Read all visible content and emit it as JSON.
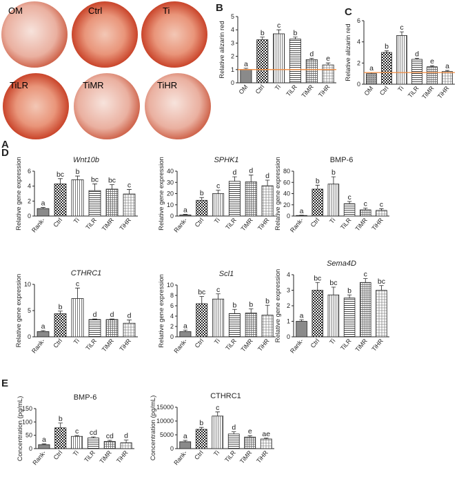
{
  "panel_labels": [
    "A",
    "B",
    "C",
    "D",
    "E"
  ],
  "photos": [
    "OM",
    "Ctrl",
    "Ti",
    "TiLR",
    "TiMR",
    "TiHR"
  ],
  "chart_data": [
    {
      "type": "bar",
      "ylabel": "Relative alizarin red",
      "categories": [
        "OM",
        "Ctrl",
        "Ti",
        "TiLR",
        "TiMR",
        "TiHR"
      ],
      "values": [
        1.0,
        3.25,
        3.7,
        3.3,
        1.75,
        1.35
      ],
      "errors": [
        0.1,
        0.2,
        0.3,
        0.15,
        0.1,
        0.15
      ],
      "annotations": [
        "a",
        "b",
        "c",
        "b",
        "d",
        "e"
      ],
      "patterns": [
        "solid",
        "checker",
        "vertical",
        "horizontal",
        "grid",
        "fine-grid"
      ],
      "ylim": [
        0,
        5
      ],
      "yticks": [
        0,
        1,
        2,
        3,
        4,
        5
      ],
      "reference_line": {
        "value": 1.0,
        "color": "#f08a3c"
      }
    },
    {
      "type": "bar",
      "ylabel": "Relative alizarin red",
      "categories": [
        "OM",
        "Ctrl",
        "Ti",
        "TiLR",
        "TiMR",
        "TiHR"
      ],
      "values": [
        1.0,
        3.0,
        4.6,
        2.35,
        1.65,
        1.2
      ],
      "errors": [
        0.1,
        0.15,
        0.35,
        0.1,
        0.1,
        0.1
      ],
      "annotations": [
        "a",
        "b",
        "c",
        "d",
        "e",
        "a"
      ],
      "patterns": [
        "dots",
        "checker",
        "vertical",
        "horizontal",
        "grid",
        "fine-grid"
      ],
      "ylim": [
        0,
        6
      ],
      "yticks": [
        0,
        2,
        4,
        6
      ],
      "reference_line": {
        "value": 1.1,
        "color": "#f08a3c"
      }
    },
    {
      "type": "bar",
      "title": "Wnt10b",
      "title_style": "italic",
      "ylabel": "Relative gene expression",
      "categories": [
        "Rank-",
        "Ctrl",
        "Ti",
        "TiLR",
        "TiMR",
        "TiHR"
      ],
      "values": [
        1.0,
        4.3,
        4.85,
        3.4,
        3.6,
        2.95
      ],
      "errors": [
        0.15,
        0.7,
        0.5,
        0.9,
        0.6,
        0.6
      ],
      "annotations": [
        "a",
        "bc",
        "b",
        "bc",
        "bc",
        "c"
      ],
      "patterns": [
        "solid",
        "checker",
        "vertical",
        "horizontal",
        "grid",
        "fine-grid"
      ],
      "ylim": [
        0,
        6
      ],
      "yticks": [
        0,
        2,
        4,
        6
      ]
    },
    {
      "type": "bar",
      "title": "SPHK1",
      "title_style": "italic",
      "ylabel": "Relative gene expression",
      "categories": [
        "Rank-",
        "Ctrl",
        "Ti",
        "TiLR",
        "TiMR",
        "TiHR"
      ],
      "values": [
        1.0,
        14,
        20,
        31,
        30.5,
        27
      ],
      "errors": [
        0.5,
        2.5,
        3,
        4,
        6,
        5
      ],
      "annotations": [
        "a",
        "b",
        "c",
        "d",
        "d",
        "d"
      ],
      "patterns": [
        "solid",
        "checker",
        "vertical",
        "horizontal",
        "grid",
        "fine-grid"
      ],
      "ylim": [
        0,
        40
      ],
      "yticks": [
        0,
        10,
        20,
        30,
        40
      ]
    },
    {
      "type": "bar",
      "title": "BMP-6",
      "title_style": "normal",
      "ylabel": "Relative gene expression",
      "categories": [
        "Rank-",
        "Ctrl",
        "Ti",
        "TiLR",
        "TiMR",
        "TiHR"
      ],
      "values": [
        1,
        48,
        57,
        22,
        11,
        10
      ],
      "errors": [
        0.5,
        7,
        13,
        4,
        3,
        3
      ],
      "annotations": [
        "a",
        "b",
        "b",
        "c",
        "c",
        "c"
      ],
      "patterns": [
        "solid",
        "checker",
        "vertical",
        "horizontal",
        "grid",
        "fine-grid"
      ],
      "ylim": [
        0,
        80
      ],
      "yticks": [
        0,
        20,
        40,
        60,
        80
      ]
    },
    {
      "type": "bar",
      "title": "CTHRC1",
      "title_style": "italic",
      "ylabel": "Relative gene expression",
      "categories": [
        "Rank-",
        "Ctrl",
        "Ti",
        "TiLR",
        "TiMR",
        "TiHR"
      ],
      "values": [
        1.0,
        4.4,
        7.3,
        3.3,
        3.3,
        2.6
      ],
      "errors": [
        0.2,
        0.5,
        2.0,
        0.1,
        0.1,
        0.6
      ],
      "annotations": [
        "a",
        "b",
        "c",
        "d",
        "d",
        "d"
      ],
      "patterns": [
        "solid",
        "checker",
        "vertical",
        "horizontal",
        "grid",
        "fine-grid"
      ],
      "ylim": [
        0,
        10
      ],
      "yticks": [
        0,
        5,
        10
      ]
    },
    {
      "type": "bar",
      "title": "Scl1",
      "title_style": "italic",
      "ylabel": "Relative gene expression",
      "categories": [
        "Rank-",
        "Ctrl",
        "Ti",
        "TiLR",
        "TiMR",
        "TiHR"
      ],
      "values": [
        1.0,
        6.4,
        7.3,
        4.5,
        4.6,
        4.2
      ],
      "errors": [
        0.3,
        1.4,
        1.0,
        0.8,
        0.8,
        1.9
      ],
      "annotations": [
        "a",
        "bc",
        "c",
        "b",
        "b",
        "b"
      ],
      "patterns": [
        "solid",
        "checker",
        "vertical",
        "horizontal",
        "grid",
        "fine-grid"
      ],
      "ylim": [
        0,
        10
      ],
      "yticks": [
        0,
        2,
        4,
        6,
        8,
        10
      ]
    },
    {
      "type": "bar",
      "title": "Sema4D",
      "title_style": "italic",
      "ylabel": "Relative gene expression",
      "categories": [
        "Rank-",
        "Ctrl",
        "Ti",
        "TiLR",
        "TiMR",
        "TiHR"
      ],
      "values": [
        1.0,
        3.0,
        2.7,
        2.5,
        3.5,
        3.0
      ],
      "errors": [
        0.1,
        0.5,
        0.5,
        0.2,
        0.25,
        0.3
      ],
      "annotations": [
        "a",
        "bc",
        "bc",
        "b",
        "c",
        "bc"
      ],
      "patterns": [
        "solid",
        "checker",
        "vertical",
        "horizontal",
        "grid",
        "fine-grid"
      ],
      "ylim": [
        0,
        4
      ],
      "yticks": [
        0,
        1,
        2,
        3,
        4
      ]
    },
    {
      "type": "bar",
      "title": "BMP-6",
      "title_style": "normal",
      "ylabel": "Concentration (pg/mL)",
      "categories": [
        "Rank-",
        "Ctrl",
        "Ti",
        "TiLR",
        "TiMR",
        "TiHR"
      ],
      "values": [
        15,
        78,
        46,
        40,
        27,
        22
      ],
      "errors": [
        3,
        18,
        3,
        4,
        4,
        10
      ],
      "annotations": [
        "a",
        "b",
        "c",
        "cd",
        "cd",
        "d"
      ],
      "patterns": [
        "solid",
        "checker",
        "vertical",
        "horizontal",
        "grid",
        "fine-grid"
      ],
      "ylim": [
        0,
        150
      ],
      "yticks": [
        0,
        50,
        100,
        150
      ]
    },
    {
      "type": "bar",
      "title": "CTHRC1",
      "title_style": "normal",
      "ylabel": "Concentration (pg/mL)",
      "categories": [
        "Rank-",
        "Ctrl",
        "Ti",
        "TiLR",
        "TiMR",
        "TiHR"
      ],
      "values": [
        2500,
        7000,
        11800,
        5300,
        4200,
        3500
      ],
      "errors": [
        500,
        700,
        1500,
        800,
        500,
        300
      ],
      "annotations": [
        "a",
        "b",
        "c",
        "d",
        "e",
        "ae"
      ],
      "patterns": [
        "solid",
        "checker",
        "vertical",
        "horizontal",
        "grid",
        "fine-grid"
      ],
      "ylim": [
        0,
        15000
      ],
      "yticks": [
        0,
        5000,
        10000,
        15000
      ]
    }
  ]
}
